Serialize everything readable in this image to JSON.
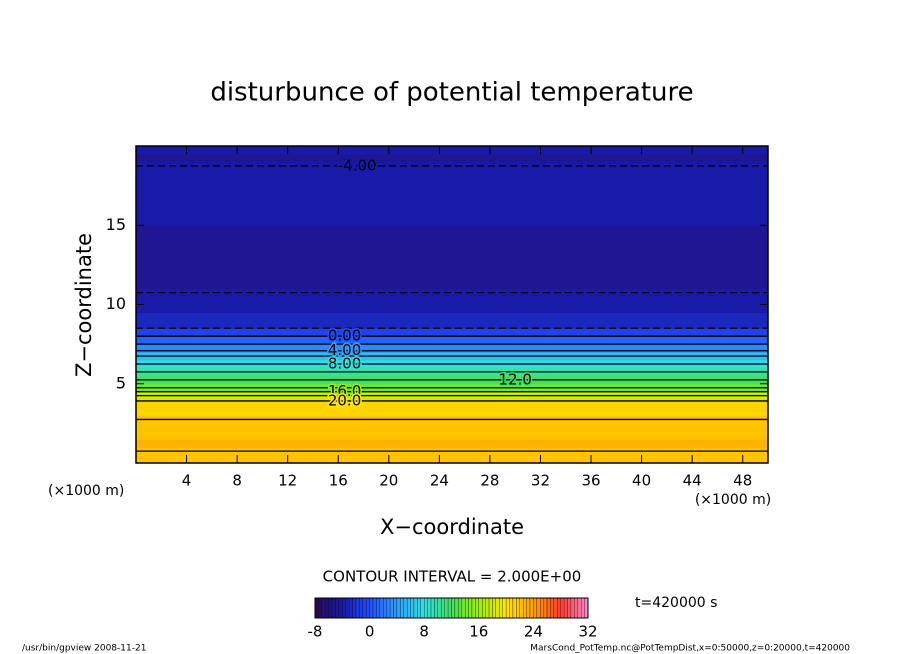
{
  "chart_data": {
    "type": "contour",
    "title": "disturbunce of potential temperature",
    "xlabel": "X−coordinate",
    "ylabel": "Z−coordinate",
    "x_unit_left": "(×1000 m)",
    "x_unit_right": "(×1000 m)",
    "xlim": [
      0,
      50
    ],
    "ylim": [
      0,
      20
    ],
    "xticks": [
      4,
      8,
      12,
      16,
      20,
      24,
      28,
      32,
      36,
      40,
      44,
      48
    ],
    "yticks": [
      5,
      10,
      15
    ],
    "z": [
      0.25,
      0.75,
      1.25,
      1.75,
      2.25,
      2.75,
      3.25,
      3.75,
      4.25,
      4.75,
      5.25,
      5.75,
      6.25,
      6.75,
      7.25,
      7.75,
      8.25,
      8.75,
      9.25,
      9.75,
      10.25,
      10.75,
      11.25,
      11.75,
      12.25,
      12.75,
      13.25,
      13.75,
      14.25,
      14.75,
      15.25,
      15.75,
      16.25,
      16.75,
      17.25,
      17.75,
      18.25,
      18.75,
      19.25,
      19.75
    ],
    "values": [
      22,
      22,
      23,
      22,
      22,
      22,
      21,
      21,
      18,
      14,
      12,
      10,
      8,
      6,
      3,
      1,
      -1,
      -3,
      -3,
      -4,
      -4,
      -4,
      -5,
      -5,
      -5,
      -5,
      -5,
      -5,
      -5,
      -5,
      -4,
      -4,
      -4,
      -4,
      -4,
      -4,
      -4,
      -4,
      -5,
      -4
    ],
    "contour_interval": 2,
    "contour_interval_label": "CONTOUR INTERVAL = 2.000E+00",
    "contour_labels": [
      {
        "value": -4,
        "label": "-4.00"
      },
      {
        "value": 0,
        "label": "0.00"
      },
      {
        "value": 4,
        "label": "4.00"
      },
      {
        "value": 8,
        "label": "8.00"
      },
      {
        "value": 12,
        "label": "12.0"
      },
      {
        "value": 16,
        "label": "16.0"
      },
      {
        "value": 20,
        "label": "20.0"
      }
    ],
    "clim": [
      -8,
      32
    ],
    "colorbar_ticks": [
      -8,
      0,
      8,
      16,
      24,
      32
    ],
    "colormap": [
      "#2a0850",
      "#1a1aa8",
      "#1f50ff",
      "#2f9cff",
      "#30e0e0",
      "#40e060",
      "#9cf000",
      "#ffe600",
      "#ffa000",
      "#ff3c30",
      "#ff88c8"
    ],
    "time_label": "t=420000 s",
    "footer_left": "/usr/bin/gpview   2008-11-21",
    "footer_right": "MarsCond_PotTemp.nc@PotTempDist,x=0:50000,z=0:20000,t=420000"
  }
}
